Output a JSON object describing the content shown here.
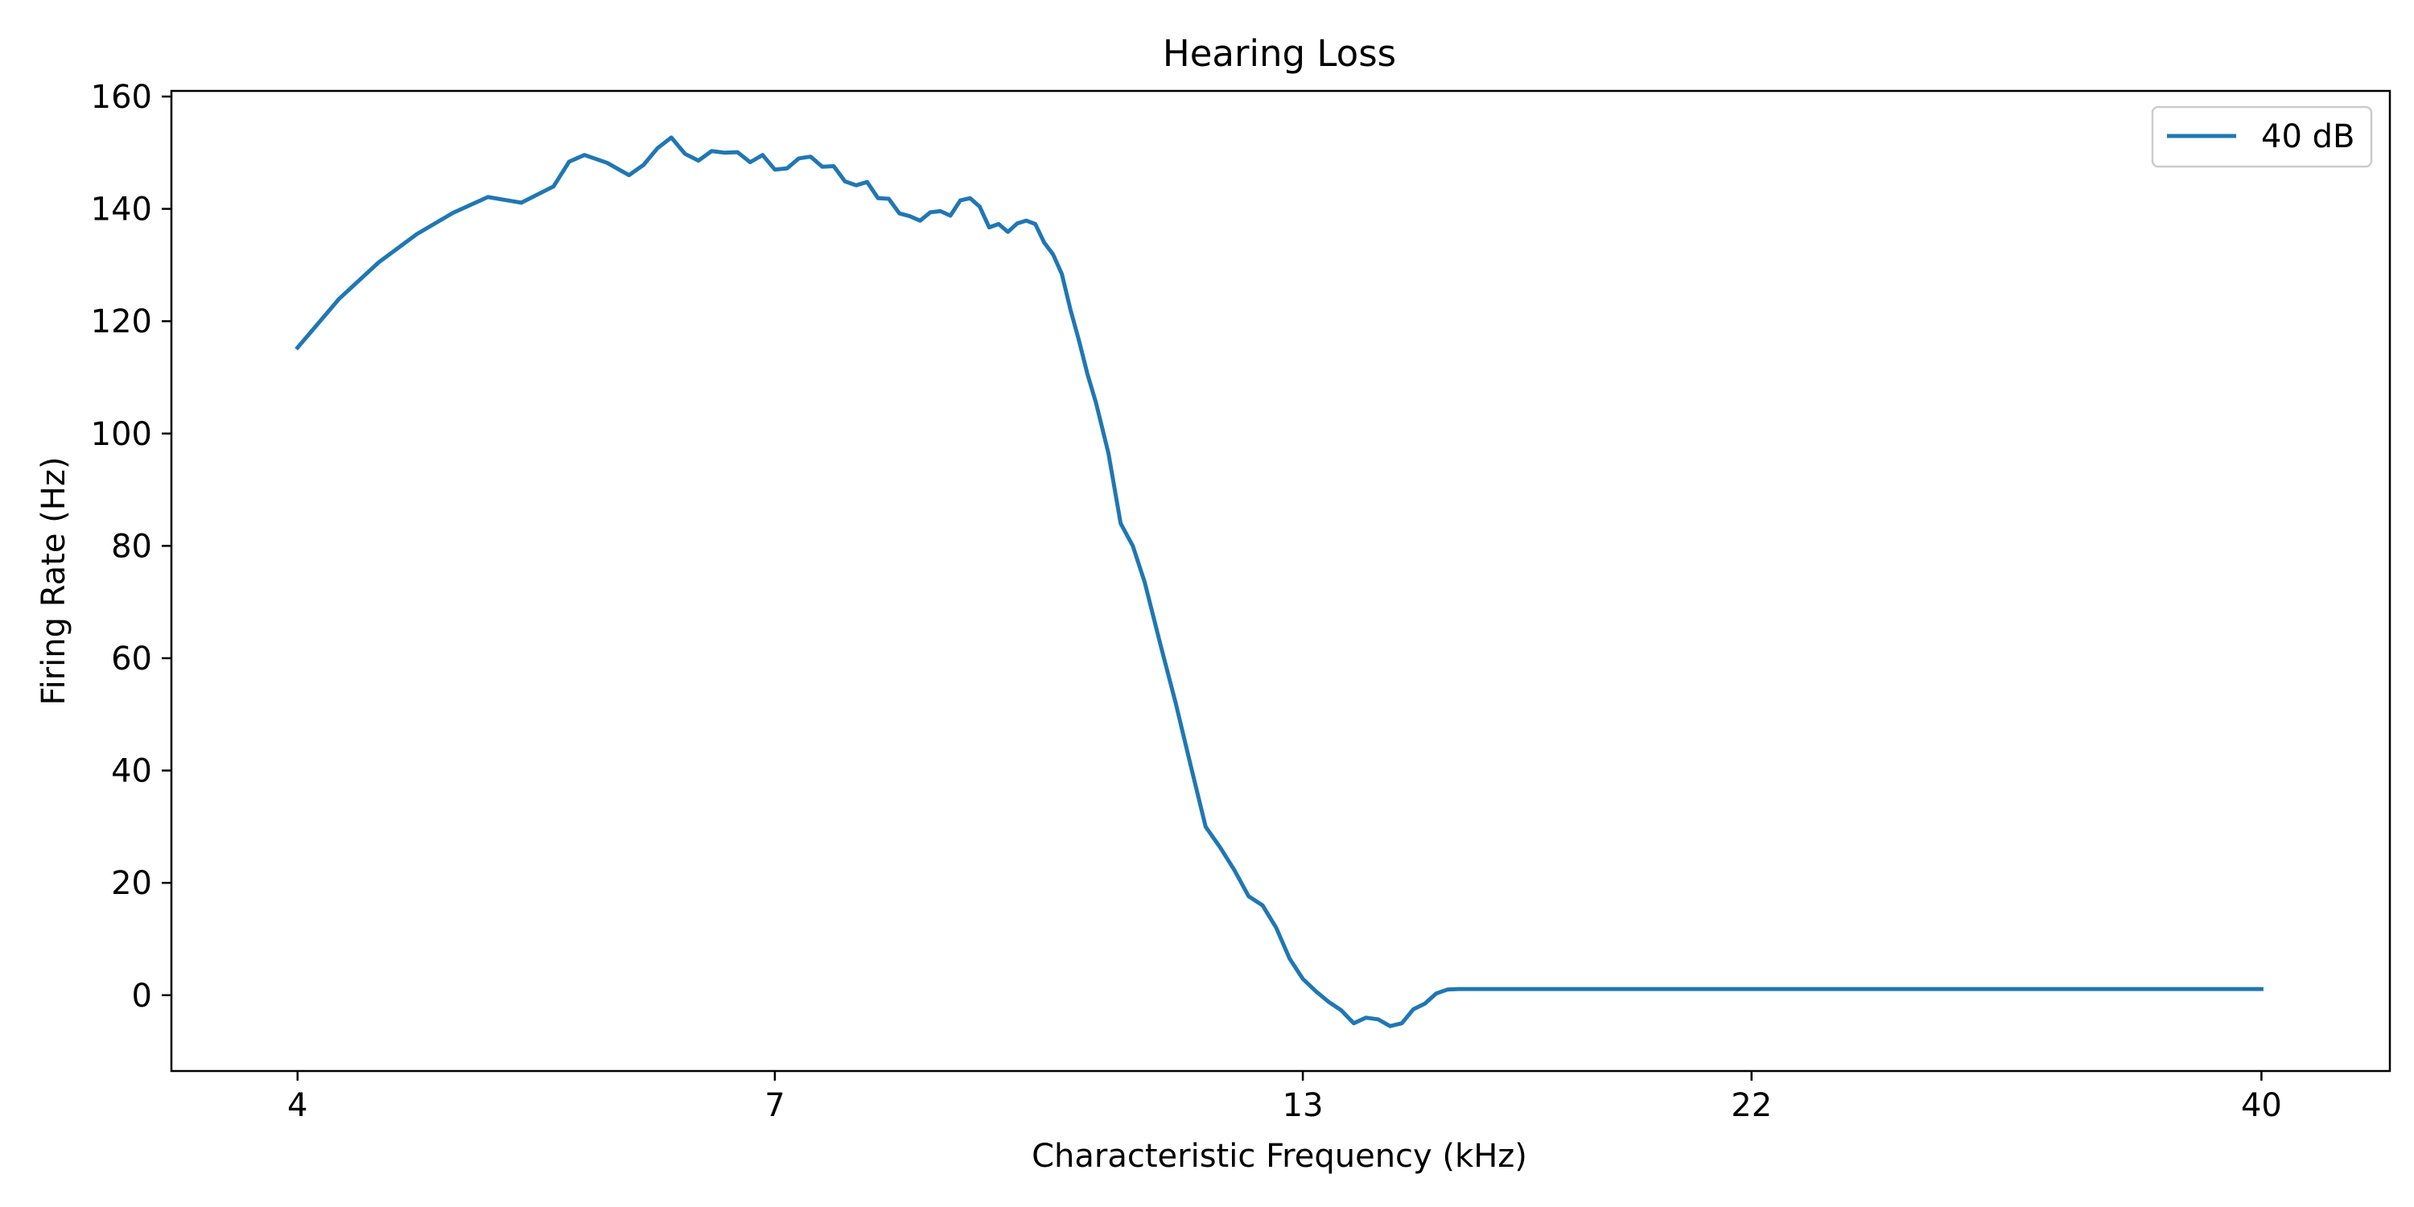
{
  "chart_data": {
    "type": "line",
    "title": "Hearing Loss",
    "xlabel": "Characteristic Frequency (kHz)",
    "ylabel": "Firing Rate (Hz)",
    "x_scale": "log",
    "x_ticks": [
      4,
      7,
      13,
      22,
      40
    ],
    "x_tick_labels": [
      "4",
      "7",
      "13",
      "22",
      "40"
    ],
    "xlim": [
      3.45,
      46.5
    ],
    "y_ticks": [
      0,
      20,
      40,
      60,
      80,
      100,
      120,
      140,
      160
    ],
    "y_tick_labels": [
      "0",
      "20",
      "40",
      "60",
      "80",
      "100",
      "120",
      "140",
      "160"
    ],
    "ylim": [
      -13.5,
      161
    ],
    "grid": false,
    "legend_position": "top-right",
    "series": [
      {
        "name": "40 dB",
        "color": "#1f77b4",
        "x": [
          4.0,
          4.2,
          4.4,
          4.6,
          4.8,
          5.0,
          5.2,
          5.4,
          5.5,
          5.6,
          5.75,
          5.9,
          6.0,
          6.1,
          6.2,
          6.3,
          6.4,
          6.5,
          6.6,
          6.7,
          6.8,
          6.9,
          7.0,
          7.1,
          7.2,
          7.3,
          7.4,
          7.5,
          7.6,
          7.7,
          7.8,
          7.9,
          8.0,
          8.1,
          8.2,
          8.3,
          8.4,
          8.5,
          8.6,
          8.7,
          8.8,
          8.9,
          9.0,
          9.1,
          9.2,
          9.3,
          9.4,
          9.5,
          9.6,
          9.7,
          9.8,
          9.9,
          10.0,
          10.1,
          10.2,
          10.35,
          10.5,
          10.65,
          10.8,
          11.0,
          11.2,
          11.4,
          11.6,
          11.8,
          12.0,
          12.2,
          12.4,
          12.6,
          12.8,
          13.0,
          13.2,
          13.4,
          13.6,
          13.8,
          14.0,
          14.2,
          14.4,
          14.6,
          14.8,
          15.0,
          15.2,
          15.4,
          15.6,
          15.8,
          16.0,
          16.2,
          16.4,
          16.6,
          16.8,
          17.0,
          17.2,
          17.5,
          18.0,
          18.5,
          20.0,
          25.0,
          30.0,
          35.0,
          40.0
        ],
        "y": [
          115.3,
          124.0,
          130.5,
          135.5,
          139.3,
          142.1,
          141.1,
          144.0,
          148.4,
          149.6,
          148.2,
          146.0,
          147.8,
          150.8,
          152.7,
          149.8,
          148.6,
          150.3,
          150.0,
          150.1,
          148.3,
          149.6,
          147.0,
          147.2,
          149.0,
          149.3,
          147.5,
          147.6,
          144.9,
          144.2,
          144.8,
          141.9,
          141.8,
          139.2,
          138.7,
          137.9,
          139.4,
          139.6,
          138.8,
          141.5,
          141.9,
          140.4,
          136.7,
          137.3,
          135.9,
          137.4,
          137.9,
          137.3,
          134.0,
          131.9,
          128.4,
          122.0,
          116.5,
          110.5,
          105.5,
          96.5,
          84.0,
          80.0,
          73.5,
          62.5,
          52.0,
          40.8,
          30.0,
          26.3,
          22.2,
          17.6,
          16.0,
          12.0,
          6.5,
          2.9,
          0.7,
          -1.2,
          -2.7,
          -5.0,
          -4.0,
          -4.3,
          -5.5,
          -5.0,
          -2.5,
          -1.5,
          0.3,
          1.0,
          1.1,
          1.1,
          1.1,
          1.1,
          1.1,
          1.1,
          1.1,
          1.1,
          1.1,
          1.1,
          1.1,
          1.1,
          1.1,
          1.1,
          1.1,
          1.1,
          1.1
        ]
      }
    ]
  }
}
